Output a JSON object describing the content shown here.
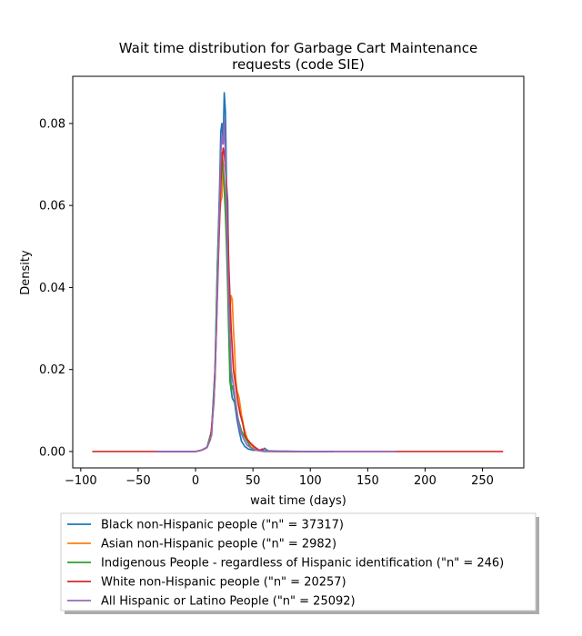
{
  "chart_data": {
    "type": "line",
    "title_line1": "Wait time distribution  for Garbage Cart Maintenance",
    "title_line2": "requests (code SIE)",
    "xlabel": "wait time (days)",
    "ylabel": "Density",
    "xlim": [
      -107,
      286
    ],
    "ylim": [
      -0.004,
      0.0915
    ],
    "xticks": [
      -100,
      -50,
      0,
      50,
      100,
      150,
      200,
      250
    ],
    "xtick_labels": [
      "−100",
      "−50",
      "0",
      "50",
      "100",
      "150",
      "200",
      "250"
    ],
    "yticks": [
      0.0,
      0.02,
      0.04,
      0.06,
      0.08
    ],
    "ytick_labels": [
      "0.00",
      "0.02",
      "0.04",
      "0.06",
      "0.08"
    ],
    "grid": false,
    "legend_placement": "below plot",
    "series": [
      {
        "name": "Black non-Hispanic people (\"n\" = 37317)",
        "color": "#1f77b4",
        "points": [
          [
            -35,
            0
          ],
          [
            0,
            0
          ],
          [
            5,
            0.0003
          ],
          [
            10,
            0.001
          ],
          [
            14,
            0.005
          ],
          [
            17,
            0.02
          ],
          [
            19,
            0.045
          ],
          [
            21,
            0.065
          ],
          [
            22,
            0.078
          ],
          [
            23,
            0.08
          ],
          [
            24,
            0.075
          ],
          [
            25,
            0.0875
          ],
          [
            26,
            0.083
          ],
          [
            27,
            0.065
          ],
          [
            28,
            0.061
          ],
          [
            29,
            0.04
          ],
          [
            30,
            0.025
          ],
          [
            31,
            0.015
          ],
          [
            32,
            0.013
          ],
          [
            34,
            0.012
          ],
          [
            36,
            0.008
          ],
          [
            38,
            0.005
          ],
          [
            40,
            0.0025
          ],
          [
            43,
            0.0012
          ],
          [
            46,
            0.0006
          ],
          [
            50,
            0.0003
          ],
          [
            55,
            0.0004
          ],
          [
            58,
            0.0002
          ],
          [
            60,
            0.0008
          ],
          [
            63,
            0.0002
          ],
          [
            70,
            0.0001
          ],
          [
            100,
            0
          ],
          [
            120,
            0
          ]
        ]
      },
      {
        "name": "Asian non-Hispanic people (\"n\" = 2982)",
        "color": "#ff7f0e",
        "points": [
          [
            0,
            0
          ],
          [
            5,
            0.0003
          ],
          [
            10,
            0.001
          ],
          [
            14,
            0.005
          ],
          [
            17,
            0.018
          ],
          [
            19,
            0.04
          ],
          [
            21,
            0.058
          ],
          [
            22,
            0.061
          ],
          [
            23,
            0.062
          ],
          [
            24,
            0.07
          ],
          [
            25,
            0.065
          ],
          [
            26,
            0.06
          ],
          [
            27,
            0.062
          ],
          [
            28,
            0.052
          ],
          [
            29,
            0.041
          ],
          [
            30,
            0.035
          ],
          [
            31,
            0.038
          ],
          [
            32,
            0.037
          ],
          [
            33,
            0.03
          ],
          [
            34,
            0.025
          ],
          [
            35,
            0.018
          ],
          [
            36,
            0.015
          ],
          [
            38,
            0.013
          ],
          [
            40,
            0.009
          ],
          [
            42,
            0.006
          ],
          [
            45,
            0.003
          ],
          [
            50,
            0.001
          ],
          [
            55,
            0.0003
          ],
          [
            60,
            0.0001
          ],
          [
            80,
            0
          ],
          [
            100,
            0
          ]
        ]
      },
      {
        "name": "Indigenous People - regardless of Hispanic identification (\"n\" = 246)",
        "color": "#2ca02c",
        "points": [
          [
            0,
            0
          ],
          [
            5,
            0.0003
          ],
          [
            10,
            0.001
          ],
          [
            14,
            0.005
          ],
          [
            17,
            0.02
          ],
          [
            19,
            0.045
          ],
          [
            21,
            0.062
          ],
          [
            22,
            0.068
          ],
          [
            23,
            0.073
          ],
          [
            24,
            0.07
          ],
          [
            25,
            0.064
          ],
          [
            26,
            0.058
          ],
          [
            27,
            0.05
          ],
          [
            28,
            0.04
          ],
          [
            29,
            0.028
          ],
          [
            30,
            0.017
          ],
          [
            31,
            0.015
          ],
          [
            32,
            0.016
          ],
          [
            34,
            0.013
          ],
          [
            36,
            0.009
          ],
          [
            38,
            0.007
          ],
          [
            40,
            0.005
          ],
          [
            42,
            0.004
          ],
          [
            44,
            0.003
          ],
          [
            46,
            0.002
          ],
          [
            48,
            0.001
          ],
          [
            50,
            0.0005
          ],
          [
            55,
            0.0002
          ],
          [
            60,
            0
          ],
          [
            100,
            0
          ]
        ]
      },
      {
        "name": "White non-Hispanic people (\"n\" = 20257)",
        "color": "#d62728",
        "points": [
          [
            -90,
            0
          ],
          [
            -50,
            0
          ],
          [
            0,
            0
          ],
          [
            5,
            0.0003
          ],
          [
            10,
            0.001
          ],
          [
            13,
            0.003
          ],
          [
            16,
            0.012
          ],
          [
            18,
            0.028
          ],
          [
            20,
            0.048
          ],
          [
            22,
            0.065
          ],
          [
            24,
            0.074
          ],
          [
            25,
            0.073
          ],
          [
            27,
            0.065
          ],
          [
            29,
            0.045
          ],
          [
            31,
            0.03
          ],
          [
            33,
            0.02
          ],
          [
            35,
            0.016
          ],
          [
            37,
            0.012
          ],
          [
            39,
            0.009
          ],
          [
            41,
            0.007
          ],
          [
            43,
            0.004
          ],
          [
            45,
            0.003
          ],
          [
            48,
            0.002
          ],
          [
            51,
            0.0012
          ],
          [
            54,
            0.0006
          ],
          [
            56,
            0.0003
          ],
          [
            58,
            0.0006
          ],
          [
            60,
            0.0001
          ],
          [
            70,
            0
          ],
          [
            120,
            0
          ],
          [
            175,
            0
          ],
          [
            200,
            0
          ],
          [
            230,
            0
          ],
          [
            268,
            0
          ]
        ]
      },
      {
        "name": "All Hispanic or Latino People (\"n\" = 25092)",
        "color": "#9467bd",
        "points": [
          [
            -35,
            0
          ],
          [
            0,
            0
          ],
          [
            5,
            0.0003
          ],
          [
            10,
            0.001
          ],
          [
            14,
            0.004
          ],
          [
            17,
            0.018
          ],
          [
            19,
            0.04
          ],
          [
            21,
            0.062
          ],
          [
            22,
            0.073
          ],
          [
            23,
            0.077
          ],
          [
            24,
            0.075
          ],
          [
            25,
            0.081
          ],
          [
            26,
            0.072
          ],
          [
            27,
            0.058
          ],
          [
            28,
            0.046
          ],
          [
            29,
            0.036
          ],
          [
            30,
            0.028
          ],
          [
            31,
            0.02
          ],
          [
            33,
            0.016
          ],
          [
            35,
            0.012
          ],
          [
            37,
            0.008
          ],
          [
            39,
            0.005
          ],
          [
            42,
            0.003
          ],
          [
            45,
            0.0015
          ],
          [
            50,
            0.0006
          ],
          [
            55,
            0.0002
          ],
          [
            60,
            0.0001
          ],
          [
            100,
            0
          ],
          [
            175,
            0
          ]
        ]
      }
    ]
  }
}
